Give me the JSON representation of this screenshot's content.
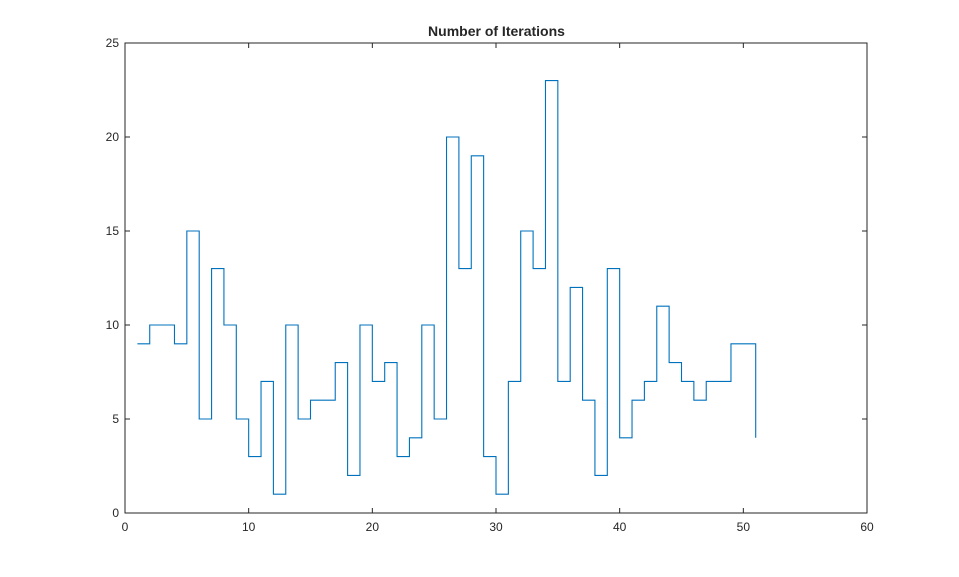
{
  "chart_data": {
    "type": "line",
    "subtype": "stairs",
    "title": "Number of Iterations",
    "xlabel": "",
    "ylabel": "",
    "xlim": [
      0,
      60
    ],
    "ylim": [
      0,
      25
    ],
    "x_ticks": [
      0,
      10,
      20,
      30,
      40,
      50,
      60
    ],
    "y_ticks": [
      0,
      5,
      10,
      15,
      20,
      25
    ],
    "grid": false,
    "box": true,
    "line_color": "#0072BD",
    "x": [
      1,
      2,
      3,
      4,
      5,
      6,
      7,
      8,
      9,
      10,
      11,
      12,
      13,
      14,
      15,
      16,
      17,
      18,
      19,
      20,
      21,
      22,
      23,
      24,
      25,
      26,
      27,
      28,
      29,
      30,
      31,
      32,
      33,
      34,
      35,
      36,
      37,
      38,
      39,
      40,
      41,
      42,
      43,
      44,
      45,
      46,
      47,
      48,
      49,
      50,
      51
    ],
    "series": [
      {
        "values": [
          9,
          10,
          10,
          9,
          15,
          5,
          13,
          10,
          5,
          3,
          7,
          1,
          10,
          5,
          6,
          6,
          8,
          2,
          10,
          7,
          8,
          3,
          4,
          10,
          5,
          20,
          13,
          19,
          3,
          1,
          7,
          15,
          13,
          23,
          7,
          12,
          6,
          2,
          13,
          4,
          6,
          7,
          11,
          8,
          7,
          6,
          7,
          7,
          9,
          9,
          4
        ]
      }
    ]
  }
}
